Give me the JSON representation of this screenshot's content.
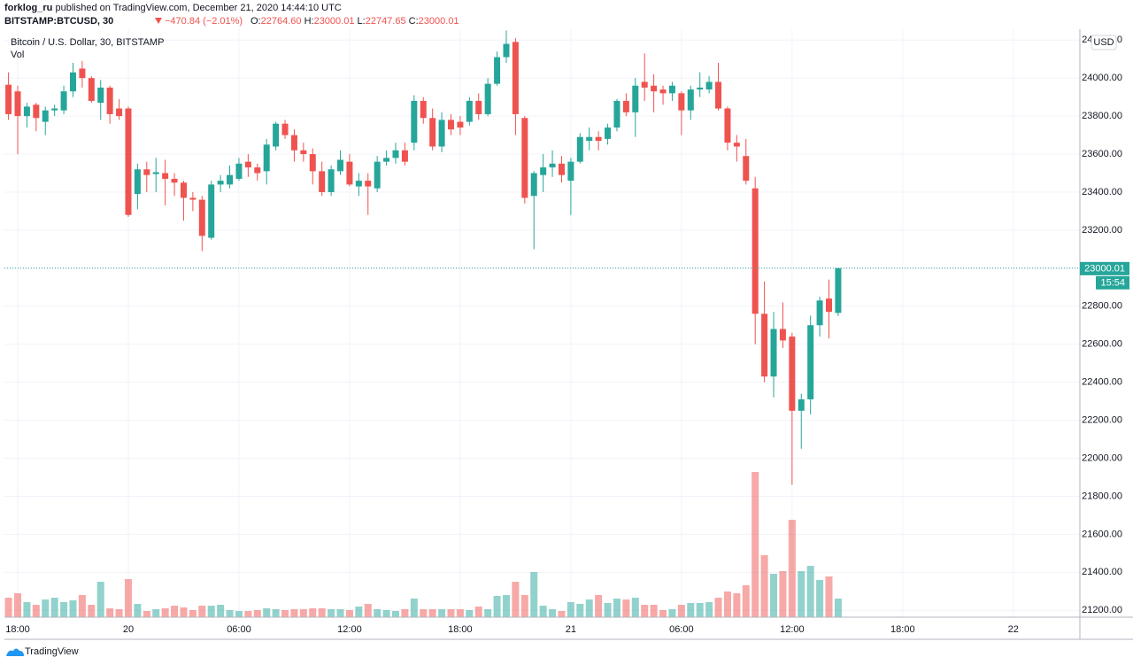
{
  "header": {
    "author": "forklog_ru",
    "published": "published on TradingView.com, December 21, 2020 14:44:10 UTC",
    "symbol": "BITSTAMP:BTCUSD, 30",
    "change": "−470.84 (−2.01%)",
    "ohlc": [
      {
        "label": "O:",
        "value": "22764.60"
      },
      {
        "label": "H:",
        "value": "23000.01"
      },
      {
        "label": "L:",
        "value": "22747.65"
      },
      {
        "label": "C:",
        "value": "23000.01"
      }
    ]
  },
  "chart_data": {
    "type": "candlestick",
    "title": "Bitcoin / U.S. Dollar, 30, BITSTAMP",
    "volume_label": "Vol",
    "currency": "USD",
    "countdown": "15:54",
    "up_color": "#26a69a",
    "down_color": "#ef5350",
    "grid": true,
    "x": [
      17.5,
      18,
      18.5,
      19,
      19.5,
      20,
      20.5,
      21,
      21.5,
      22,
      22.5,
      23,
      23.5,
      24,
      24.5,
      25,
      25.5,
      26,
      26.5,
      27,
      27.5,
      28,
      28.5,
      29,
      29.5,
      30,
      30.5,
      31,
      31.5,
      32,
      32.5,
      33,
      33.5,
      34,
      34.5,
      35,
      35.5,
      36,
      36.5,
      37,
      37.5,
      38,
      38.5,
      39,
      39.5,
      40,
      40.5,
      41,
      41.5,
      42,
      42.5,
      43,
      43.5,
      44,
      44.5,
      45,
      45.5,
      46,
      46.5,
      47,
      47.5,
      48,
      48.5,
      49,
      49.5,
      50,
      50.5,
      51,
      51.5,
      52,
      52.5,
      53,
      53.5,
      54,
      54.5,
      55,
      55.5,
      56,
      56.5,
      57,
      57.5,
      58,
      58.5,
      59,
      59.5,
      60,
      60.5,
      61,
      61.5,
      62,
      62.5
    ],
    "open": [
      23965,
      23930,
      23800,
      23860,
      23770,
      23830,
      23830,
      23930,
      24050,
      24000,
      23870,
      23950,
      23840,
      23840,
      23390,
      23520,
      23495,
      23500,
      23470,
      23450,
      23370,
      23360,
      23160,
      23440,
      23440,
      23470,
      23560,
      23530,
      23510,
      23640,
      23760,
      23700,
      23620,
      23600,
      23510,
      23400,
      23510,
      23560,
      23430,
      23460,
      23420,
      23560,
      23580,
      23620,
      23660,
      23880,
      23790,
      23640,
      23780,
      23770,
      23770,
      23880,
      23810,
      23970,
      24110,
      24190,
      23790,
      23380,
      23490,
      23530,
      23550,
      23460,
      23560,
      23670,
      23690,
      23680,
      23740,
      23880,
      23820,
      23980,
      23960,
      23940,
      23920,
      23920,
      23830,
      23940,
      23940,
      23980,
      23840,
      23660,
      23590,
      23420,
      22760,
      22430,
      22680,
      22640,
      22250,
      22310,
      22700,
      22840,
      22764.6
    ],
    "high": [
      24030,
      23960,
      23870,
      23870,
      23850,
      23860,
      23960,
      24080,
      24090,
      24010,
      23990,
      23960,
      23890,
      23850,
      23550,
      23560,
      23580,
      23570,
      23500,
      23460,
      23400,
      23380,
      23460,
      23490,
      23540,
      23580,
      23600,
      23550,
      23680,
      23770,
      23780,
      23730,
      23660,
      23630,
      23560,
      23540,
      23620,
      23600,
      23500,
      23500,
      23590,
      23620,
      23660,
      23660,
      23910,
      23900,
      23840,
      23820,
      23810,
      23800,
      23900,
      23920,
      24000,
      24140,
      24250,
      24210,
      23800,
      23510,
      23600,
      23620,
      23590,
      23580,
      23710,
      23740,
      23720,
      23760,
      23890,
      23920,
      24000,
      24130,
      24020,
      23960,
      23980,
      23930,
      23960,
      24030,
      24010,
      24080,
      23850,
      23700,
      23680,
      23480,
      22930,
      22770,
      22820,
      22660,
      22340,
      22750,
      22850,
      22940,
      23000.01
    ],
    "low": [
      23780,
      23600,
      23740,
      23720,
      23700,
      23800,
      23810,
      23900,
      23950,
      23870,
      23780,
      23760,
      23780,
      23270,
      23310,
      23400,
      23400,
      23330,
      23380,
      23250,
      23300,
      23090,
      23150,
      23400,
      23420,
      23460,
      23480,
      23460,
      23440,
      23620,
      23680,
      23560,
      23560,
      23440,
      23380,
      23380,
      23490,
      23430,
      23380,
      23280,
      23400,
      23540,
      23550,
      23540,
      23620,
      23760,
      23620,
      23610,
      23700,
      23700,
      23750,
      23780,
      23800,
      23960,
      24080,
      23700,
      23340,
      23100,
      23400,
      23480,
      23450,
      23280,
      23550,
      23620,
      23620,
      23650,
      23720,
      23800,
      23690,
      23880,
      23820,
      23860,
      23880,
      23700,
      23780,
      23900,
      23920,
      23830,
      23620,
      23560,
      23440,
      22600,
      22400,
      22320,
      22580,
      21860,
      22050,
      22230,
      22640,
      22630,
      22747.65
    ],
    "close": [
      23810,
      23800,
      23850,
      23790,
      23830,
      23840,
      23930,
      24030,
      24000,
      23880,
      23950,
      23810,
      23800,
      23280,
      23520,
      23490,
      23505,
      23470,
      23450,
      23370,
      23360,
      23170,
      23440,
      23460,
      23490,
      23550,
      23530,
      23500,
      23650,
      23760,
      23700,
      23620,
      23600,
      23510,
      23400,
      23520,
      23570,
      23440,
      23460,
      23430,
      23560,
      23580,
      23620,
      23560,
      23880,
      23790,
      23640,
      23780,
      23730,
      23740,
      23880,
      23810,
      23970,
      24110,
      24180,
      23810,
      23370,
      23500,
      23530,
      23550,
      23490,
      23560,
      23690,
      23690,
      23670,
      23740,
      23880,
      23820,
      23960,
      23950,
      23930,
      23920,
      23960,
      23830,
      23940,
      23950,
      23980,
      23840,
      23660,
      23640,
      23460,
      22760,
      22430,
      22680,
      22620,
      22250,
      22310,
      22700,
      22830,
      22770,
      23000.01
    ],
    "volume": [
      22,
      27,
      17,
      14,
      20,
      22,
      17,
      19,
      25,
      14,
      40,
      10,
      9,
      43,
      15,
      7,
      9,
      10,
      13,
      11,
      8,
      13,
      13,
      14,
      8,
      7,
      7,
      8,
      10,
      9,
      8,
      9,
      9,
      10,
      10,
      9,
      9,
      8,
      12,
      15,
      9,
      8,
      7,
      9,
      21,
      9,
      9,
      9,
      9,
      9,
      8,
      12,
      9,
      24,
      25,
      40,
      25,
      51,
      13,
      9,
      7,
      17,
      15,
      20,
      25,
      16,
      21,
      20,
      22,
      14,
      14,
      8,
      9,
      14,
      16,
      16,
      17,
      22,
      29,
      27,
      36,
      164,
      70,
      49,
      52,
      110,
      52,
      58,
      42,
      46,
      21
    ],
    "xlim": [
      17.28,
      75.61
    ],
    "xticks": [
      {
        "value": 18,
        "label": "18:00"
      },
      {
        "value": 24,
        "label": "20"
      },
      {
        "value": 30,
        "label": "06:00"
      },
      {
        "value": 36,
        "label": "12:00"
      },
      {
        "value": 42,
        "label": "18:00"
      },
      {
        "value": 48,
        "label": "21"
      },
      {
        "value": 54,
        "label": "06:00"
      },
      {
        "value": 60,
        "label": "12:00"
      },
      {
        "value": 66,
        "label": "18:00"
      },
      {
        "value": 72,
        "label": "22"
      }
    ],
    "ylim": [
      21164,
      24257
    ],
    "yticks": [
      {
        "value": 21200,
        "label": "21200.00"
      },
      {
        "value": 21400,
        "label": "21400.00"
      },
      {
        "value": 21600,
        "label": "21600.00"
      },
      {
        "value": 21800,
        "label": "21800.00"
      },
      {
        "value": 22000,
        "label": "22000.00"
      },
      {
        "value": 22200,
        "label": "22200.00"
      },
      {
        "value": 22400,
        "label": "22400.00"
      },
      {
        "value": 22600,
        "label": "22600.00"
      },
      {
        "value": 22800,
        "label": "22800.00"
      },
      {
        "value": 23000,
        "label": "23000.00"
      },
      {
        "value": 23200,
        "label": "23200.00"
      },
      {
        "value": 23400,
        "label": "23400.00"
      },
      {
        "value": 23600,
        "label": "23600.00"
      },
      {
        "value": 23800,
        "label": "23800.00"
      },
      {
        "value": 24000,
        "label": "24000.00"
      },
      {
        "value": 24200,
        "label": "24200.00"
      }
    ]
  }
}
